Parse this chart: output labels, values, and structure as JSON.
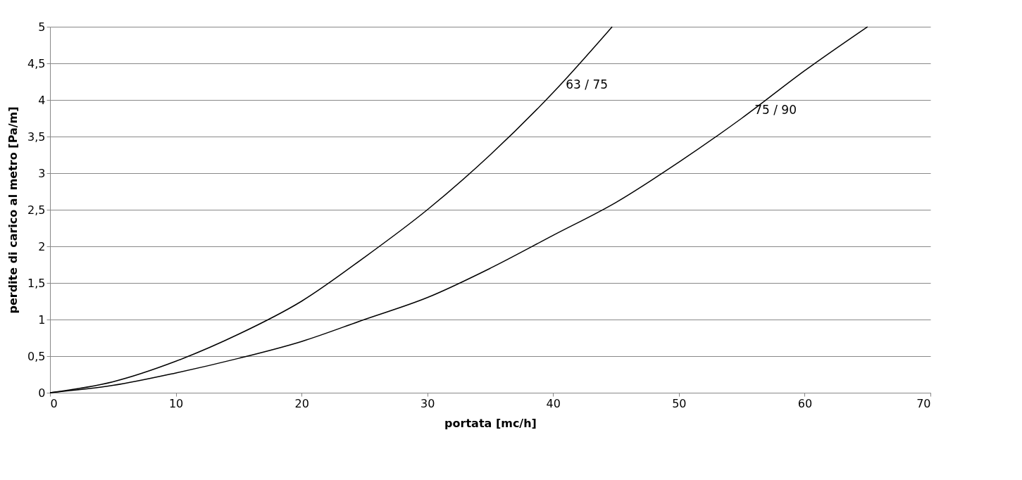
{
  "chart_data": {
    "type": "line",
    "xlabel": "portata [mc/h]",
    "ylabel": "perdite di carico al metro [Pa/m]",
    "xlim": [
      0,
      70
    ],
    "xticks": [
      0,
      10,
      20,
      30,
      40,
      50,
      60,
      70
    ],
    "ylim": [
      0,
      5
    ],
    "yticks": [
      0,
      {
        "value": 0.5,
        "label": "0,5"
      },
      1,
      {
        "value": 1.5,
        "label": "1,5"
      },
      2,
      {
        "value": 2.5,
        "label": "2,5"
      },
      3,
      {
        "value": 3.5,
        "label": "3,5"
      },
      4,
      {
        "value": 4.5,
        "label": "4,5"
      },
      5
    ],
    "grid": "y",
    "legend": false,
    "marker": "none",
    "line_style": "solid",
    "series": [
      {
        "name": "63 / 75",
        "color": "#000000",
        "x": [
          0,
          5,
          10,
          15,
          20,
          25,
          30,
          35,
          40,
          44.7
        ],
        "values": [
          0,
          0.15,
          0.43,
          0.8,
          1.25,
          1.85,
          2.5,
          3.25,
          4.1,
          5
        ]
      },
      {
        "name": "75 / 90",
        "color": "#000000",
        "x": [
          0,
          5,
          10,
          15,
          20,
          25,
          30,
          35,
          40,
          45,
          50,
          55,
          60,
          65
        ],
        "values": [
          0,
          0.1,
          0.27,
          0.47,
          0.7,
          1.0,
          1.3,
          1.7,
          2.15,
          2.6,
          3.15,
          3.75,
          4.4,
          5.0
        ]
      }
    ]
  }
}
